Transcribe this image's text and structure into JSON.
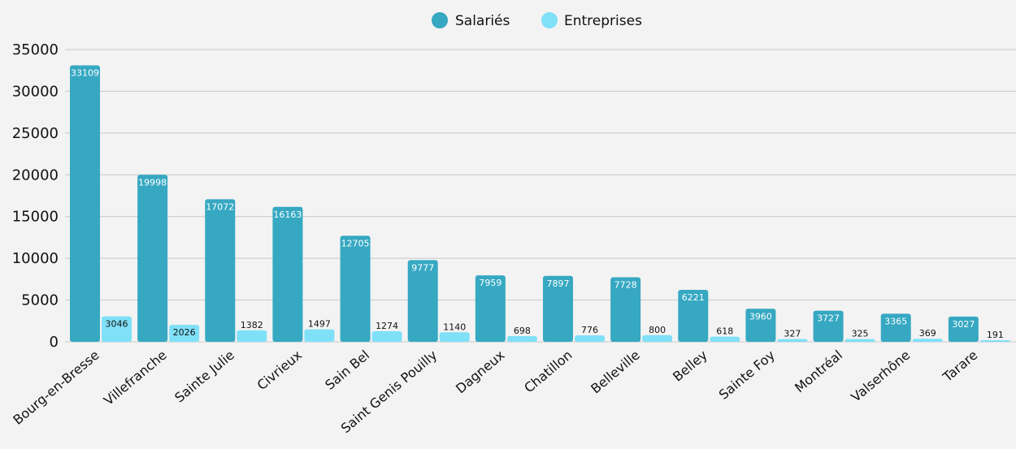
{
  "chart_data": {
    "type": "bar",
    "categories": [
      "Bourg-en-Bresse",
      "Villefranche",
      "Sainte Julie",
      "Civrieux",
      "Sain Bel",
      "Saint Genis Pouilly",
      "Dagneux",
      "Chatillon",
      "Belleville",
      "Belley",
      "Sainte Foy",
      "Montréal",
      "Valserhône",
      "Tarare"
    ],
    "series": [
      {
        "name": "Salariés",
        "color": "#36a8c2",
        "values": [
          33109,
          19998,
          17072,
          16163,
          12705,
          9777,
          7959,
          7897,
          7728,
          6221,
          3960,
          3727,
          3365,
          3027
        ]
      },
      {
        "name": "Entreprises",
        "color": "#7fe0f8",
        "values": [
          3046,
          2026,
          1382,
          1497,
          1274,
          1140,
          698,
          776,
          800,
          618,
          327,
          325,
          369,
          191
        ]
      }
    ],
    "ylim": [
      0,
      35000
    ],
    "yticks": [
      0,
      5000,
      10000,
      15000,
      20000,
      25000,
      30000,
      35000
    ],
    "legend_position": "top-center",
    "grid": true,
    "xlabel": "",
    "ylabel": "",
    "title": ""
  }
}
